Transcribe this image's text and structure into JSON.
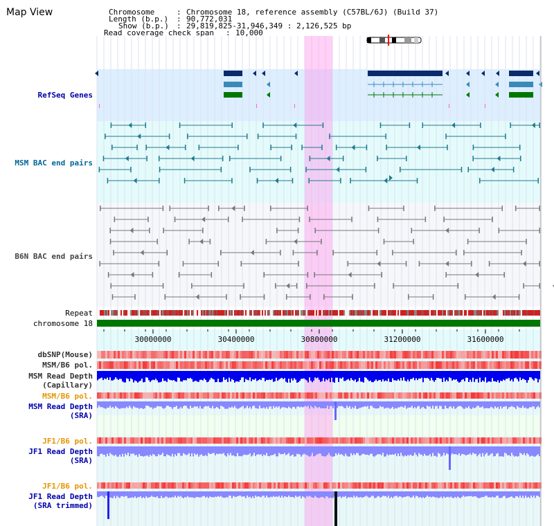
{
  "title": "Map View",
  "info": {
    "chromosome_label": "Chromosome",
    "chromosome_value": "Chromosome 18, reference assembly (C57BL/6J) (Build 37)",
    "length_label": "Length (b.p.)",
    "length_value": "90,772,031",
    "show_label": "Show (b.p.)",
    "show_value": "29,819,825-31,946,349 : 2,126,525 bp",
    "coverage_label": "Read coverage check span",
    "coverage_value": "10,000"
  },
  "tracks": {
    "refseq": "RefSeq Genes",
    "msm_bac": "MSM BAC end pairs",
    "b6n_bac": "B6N BAC end pairs",
    "repeat": "Repeat",
    "chromosome": "chromosome 18",
    "dbsnp": "dbSNP(Mouse)",
    "msm_b6_pol_1": "MSM/B6 pol.",
    "msm_depth_cap_1": "MSM Read Depth",
    "msm_depth_cap_2": "(Capillary)",
    "msm_b6_pol_2": "MSM/B6 pol.",
    "msm_depth_sra_1": "MSM Read Depth",
    "msm_depth_sra_2": "(SRA)",
    "jf1_b6_pol_1": "JF1/B6 pol.",
    "jf1_depth_sra_1": "JF1 Read Depth",
    "jf1_depth_sra_2": "(SRA)",
    "jf1_b6_pol_2": "JF1/B6 pol.",
    "jf1_depth_trim_1": "JF1 Read Depth",
    "jf1_depth_trim_2": "(SRA trimmed)"
  },
  "axis": {
    "ticks": [
      "30000000",
      "30400000",
      "30800000",
      "31200000",
      "31600000"
    ]
  },
  "colors": {
    "refseq_dark": "#0a2a6a",
    "refseq_mid": "#3a8ab8",
    "refseq_green": "#007700",
    "highlight": "#ff99ee",
    "chromosome": "#007700",
    "depth_cap": "#0000ee",
    "depth_sra": "#8888ff"
  }
}
